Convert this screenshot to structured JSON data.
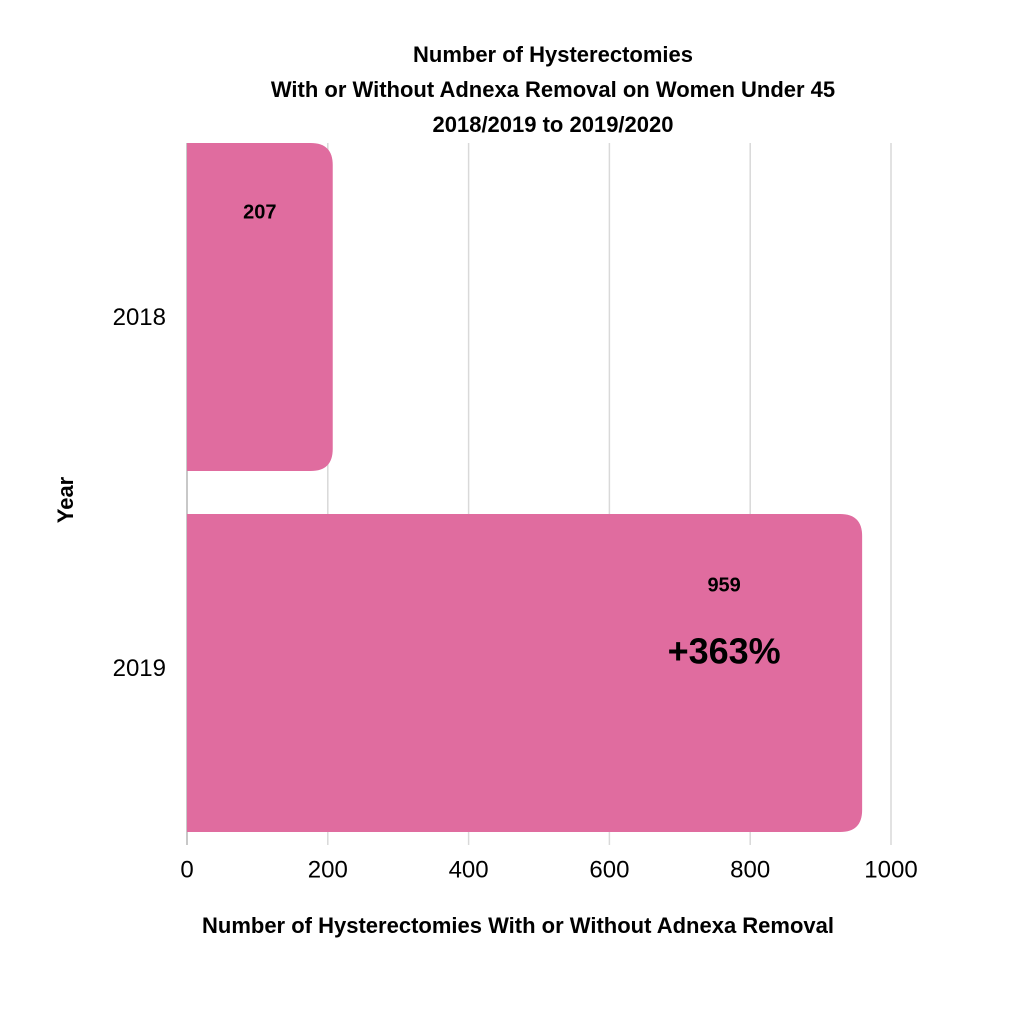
{
  "chart_data": {
    "type": "barh",
    "title": [
      "Number of Hysterectomies",
      "With or Without Adnexa Removal on Women Under 45",
      "2018/2019 to 2019/2020"
    ],
    "categories": [
      "2018",
      "2019"
    ],
    "values": [
      207,
      959
    ],
    "color": "#e06c9f",
    "annotation": "+363%",
    "xlabel": "Number of Hysterectomies With or Without Adnexa Removal",
    "ylabel": "Year",
    "xlim": [
      0,
      1000
    ],
    "xticks": [
      0,
      200,
      400,
      600,
      800,
      1000
    ],
    "grid": true
  }
}
